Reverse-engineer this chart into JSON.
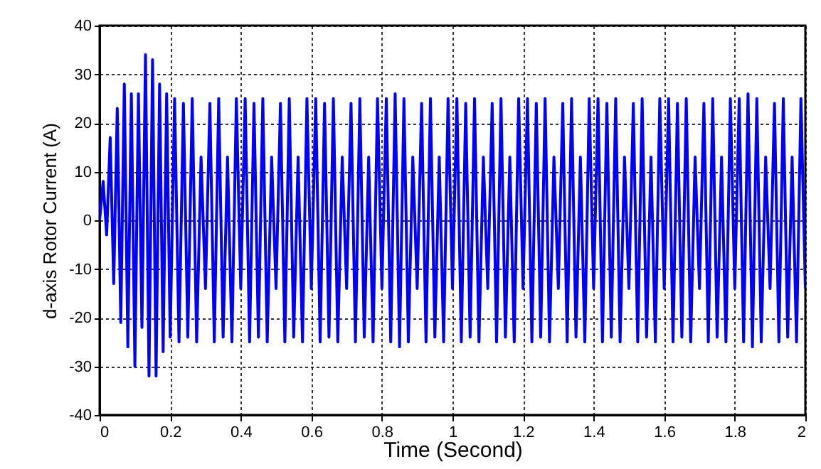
{
  "chart_data": {
    "type": "line",
    "xlabel": "Time (Second)",
    "ylabel": "d-axis Rotor Current (A)",
    "xlim": [
      0,
      2
    ],
    "ylim": [
      -40,
      40
    ],
    "xticks": [
      0,
      0.2,
      0.4,
      0.6,
      0.8,
      1,
      1.2,
      1.4,
      1.6,
      1.8,
      2
    ],
    "yticks": [
      -40,
      -30,
      -20,
      -10,
      0,
      10,
      20,
      30,
      40
    ],
    "grid": true,
    "x": [
      0,
      0.01,
      0.02,
      0.03,
      0.04,
      0.05,
      0.06,
      0.07,
      0.08,
      0.09,
      0.1,
      0.11,
      0.12,
      0.13,
      0.14,
      0.15,
      0.16,
      0.17,
      0.18,
      0.19,
      0.2,
      0.2125,
      0.225,
      0.2375,
      0.25,
      0.2625,
      0.275,
      0.2875,
      0.3,
      0.3125,
      0.325,
      0.3375,
      0.35,
      0.3625,
      0.375,
      0.3875,
      0.4,
      0.4125,
      0.425,
      0.4375,
      0.45,
      0.4625,
      0.475,
      0.4875,
      0.5,
      0.5125,
      0.525,
      0.5375,
      0.55,
      0.5625,
      0.575,
      0.5875,
      0.6,
      0.6125,
      0.625,
      0.6375,
      0.65,
      0.6625,
      0.675,
      0.6875,
      0.7,
      0.7125,
      0.725,
      0.7375,
      0.75,
      0.7625,
      0.775,
      0.7875,
      0.8,
      0.8125,
      0.825,
      0.8375,
      0.85,
      0.8625,
      0.875,
      0.8875,
      0.9,
      0.9125,
      0.925,
      0.9375,
      0.95,
      0.9625,
      0.975,
      0.9875,
      1,
      1.0125,
      1.025,
      1.0375,
      1.05,
      1.0625,
      1.075,
      1.0875,
      1.1,
      1.1125,
      1.125,
      1.1375,
      1.15,
      1.1625,
      1.175,
      1.1875,
      1.2,
      1.2125,
      1.225,
      1.2375,
      1.25,
      1.2625,
      1.275,
      1.2875,
      1.3,
      1.3125,
      1.325,
      1.3375,
      1.35,
      1.3625,
      1.375,
      1.3875,
      1.4,
      1.4125,
      1.425,
      1.4375,
      1.45,
      1.4625,
      1.475,
      1.4875,
      1.5,
      1.5125,
      1.525,
      1.5375,
      1.55,
      1.5625,
      1.575,
      1.5875,
      1.6,
      1.6125,
      1.625,
      1.6375,
      1.65,
      1.6625,
      1.675,
      1.6875,
      1.7,
      1.7125,
      1.725,
      1.7375,
      1.75,
      1.7625,
      1.775,
      1.7875,
      1.8,
      1.8125,
      1.825,
      1.8375,
      1.85,
      1.8625,
      1.875,
      1.8875,
      1.9,
      1.9125,
      1.925,
      1.9375,
      1.95,
      1.9625,
      1.975,
      1.9875,
      2
    ],
    "series": [
      {
        "color": "#0000ff",
        "values": [
          0,
          8,
          -3,
          17,
          -13,
          23,
          -21,
          28,
          -26,
          26,
          -30,
          26,
          -22,
          34,
          -32,
          33,
          -32,
          28,
          -27,
          26,
          -24,
          25,
          -25,
          24,
          -24,
          25,
          -25,
          13,
          -14,
          24,
          -25,
          25,
          -24,
          13,
          -25,
          25,
          -14,
          25,
          -25,
          24,
          -24,
          25,
          -25,
          13,
          -14,
          24,
          -25,
          25,
          -24,
          13,
          -25,
          25,
          -14,
          25,
          -25,
          24,
          -24,
          25,
          -25,
          13,
          -14,
          24,
          -25,
          25,
          -24,
          13,
          -25,
          25,
          -14,
          25,
          -25,
          26,
          -26,
          25,
          -25,
          13,
          -14,
          24,
          -25,
          25,
          -24,
          13,
          -25,
          25,
          -14,
          25,
          -25,
          24,
          -24,
          25,
          -25,
          13,
          -14,
          24,
          -25,
          25,
          -24,
          13,
          -25,
          25,
          -14,
          25,
          -25,
          24,
          -24,
          25,
          -25,
          13,
          -14,
          24,
          -25,
          25,
          -24,
          13,
          -25,
          25,
          -14,
          25,
          -25,
          24,
          -24,
          25,
          -25,
          13,
          -14,
          24,
          -25,
          25,
          -24,
          13,
          -25,
          25,
          -14,
          25,
          -25,
          24,
          -24,
          25,
          -25,
          13,
          -14,
          24,
          -25,
          25,
          -24,
          13,
          -25,
          25,
          -14,
          25,
          -25,
          26,
          -26,
          25,
          -25,
          13,
          -14,
          24,
          -25,
          25,
          -24,
          13,
          -25,
          25,
          -14
        ]
      }
    ]
  }
}
